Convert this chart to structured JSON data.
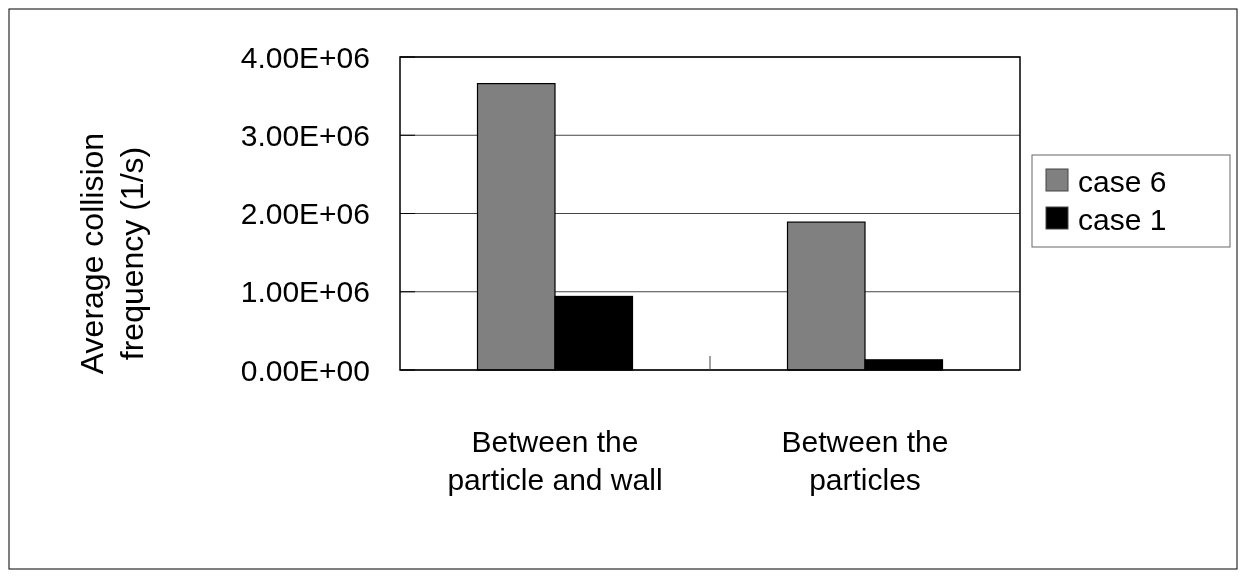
{
  "chart_data": {
    "type": "bar",
    "ylabel": "Average collision frequency (1/s)",
    "categories": [
      "Between the particle and wall",
      "Between the particles"
    ],
    "series": [
      {
        "name": "case 6",
        "color": "#808080",
        "values": [
          3660000,
          1890000
        ]
      },
      {
        "name": "case 1",
        "color": "#000000",
        "values": [
          940000,
          130000
        ]
      }
    ],
    "ylim": [
      0,
      4000000
    ],
    "yticks": [
      {
        "value": 0,
        "label": "0.00E+00"
      },
      {
        "value": 1000000,
        "label": "1.00E+06"
      },
      {
        "value": 2000000,
        "label": "2.00E+06"
      },
      {
        "value": 3000000,
        "label": "3.00E+06"
      },
      {
        "value": 4000000,
        "label": "4.00E+06"
      }
    ],
    "grid": "y",
    "legend": "right"
  }
}
